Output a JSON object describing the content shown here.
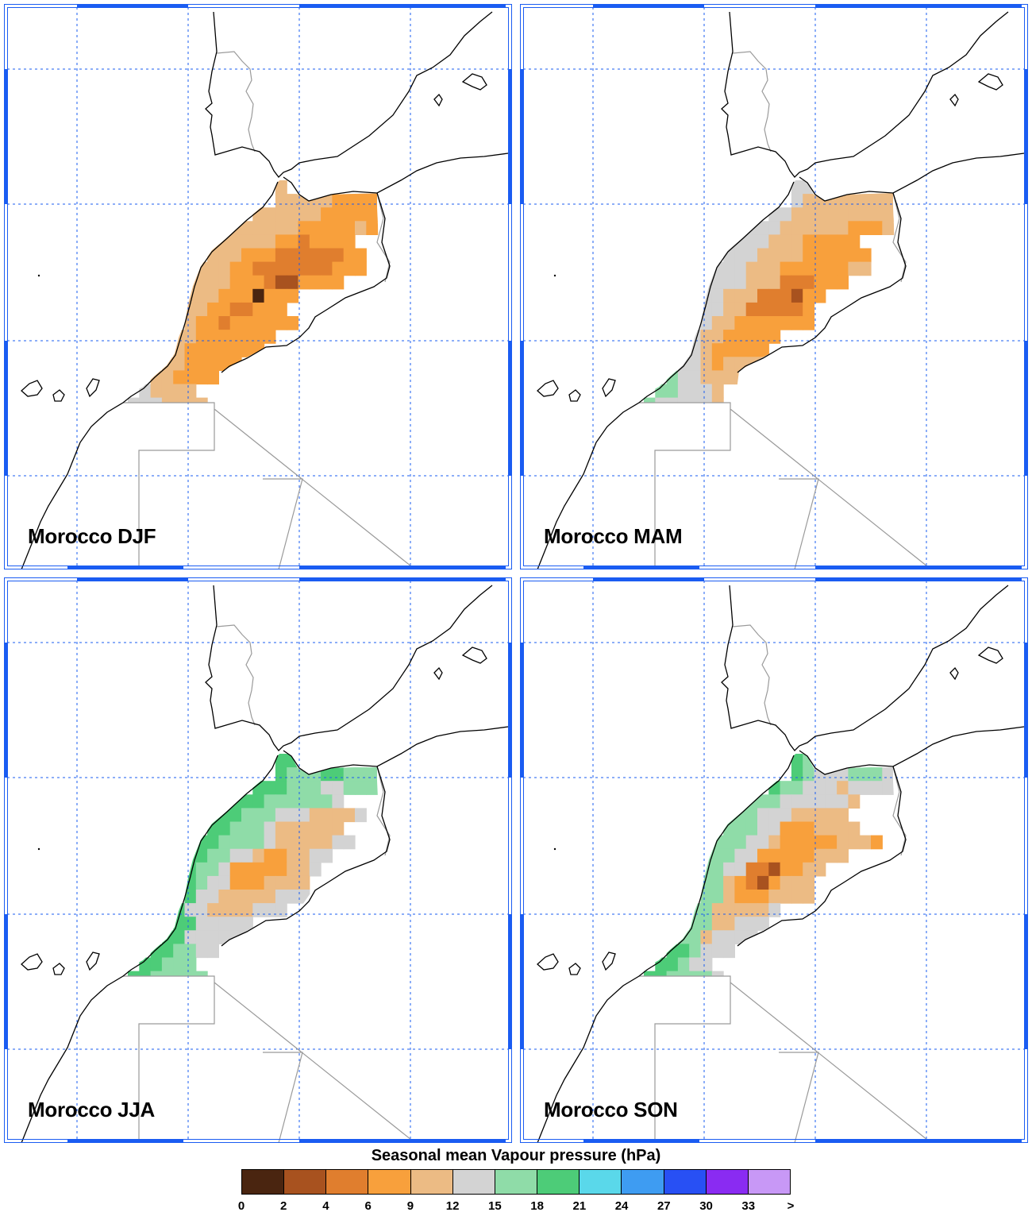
{
  "panels": [
    {
      "label": "Morocco DJF",
      "season": "DJF"
    },
    {
      "label": "Morocco MAM",
      "season": "MAM"
    },
    {
      "label": "Morocco JJA",
      "season": "JJA"
    },
    {
      "label": "Morocco SON",
      "season": "SON"
    }
  ],
  "legend": {
    "title": "Seasonal mean Vapour pressure (hPa)",
    "tick_labels": [
      "0",
      "2",
      "4",
      "6",
      "9",
      "12",
      "15",
      "18",
      "21",
      "24",
      "27",
      "30",
      "33",
      ">"
    ],
    "colors": [
      "#4a2510",
      "#a8521f",
      "#e07e2e",
      "#f8a03c",
      "#ecbb84",
      "#d3d3d3",
      "#8fdca8",
      "#4dcc78",
      "#5ad8ea",
      "#3e9cf2",
      "#2850f4",
      "#8a2bf2",
      "#c898f6"
    ]
  },
  "map_style": {
    "coast_color": "#000000",
    "border_color": "#9a9a9a",
    "grid_color": "#1a5cf2",
    "frame_color": "#1a5cf2"
  }
}
